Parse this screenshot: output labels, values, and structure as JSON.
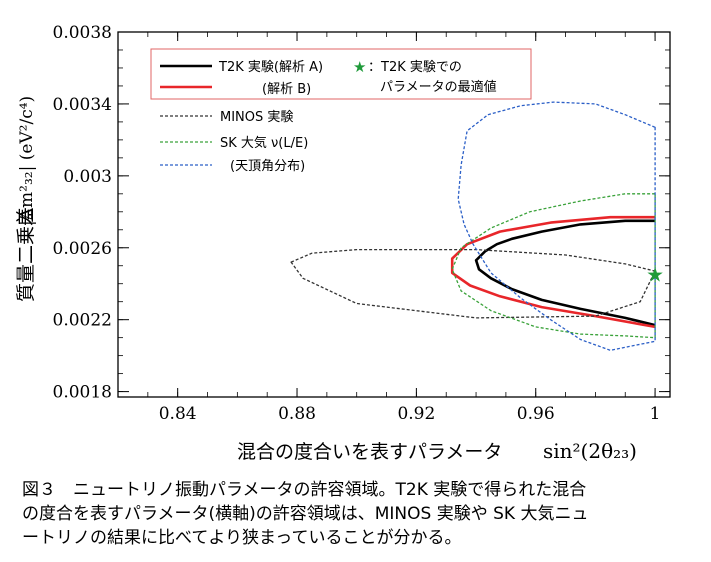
{
  "chart_data": {
    "type": "line",
    "xlabel_text": "混合の度合いを表すパラメータ",
    "xlabel_math": "sin²(2θ₂₃)",
    "ylabel_text": "質量二乗差",
    "ylabel_math": "|Δm²₃₂| (eV²/c⁴)",
    "xlim": [
      0.82,
      1.005
    ],
    "ylim": [
      0.00177,
      0.0038
    ],
    "x_ticks": [
      0.84,
      0.88,
      0.92,
      0.96,
      1.0
    ],
    "x_tick_labels": [
      "0.84",
      "0.88",
      "0.92",
      "0.96",
      "1"
    ],
    "y_ticks": [
      0.0018,
      0.0022,
      0.0026,
      0.003,
      0.0034,
      0.0038
    ],
    "y_tick_labels": [
      "0.0018",
      "0.0022",
      "0.0026",
      "0.003",
      "0.0034",
      "0.0038"
    ],
    "legend_position": "top-left",
    "legend": [
      {
        "label": "T2K 実験(解析 A)",
        "style": "solid",
        "color": "#000000"
      },
      {
        "label": "(解析 B)",
        "style": "solid",
        "color": "#e8262a"
      },
      {
        "label": "MINOS 実験",
        "style": "dotted",
        "color": "#333333"
      },
      {
        "label": "SK 大気 ν(L/E)",
        "style": "dotted",
        "color": "#3aa23a"
      },
      {
        "label": "(天頂角分布)",
        "style": "dotted",
        "color": "#2b5fc7"
      }
    ],
    "best_fit_label_line1": "：T2K 実験での",
    "best_fit_label_line2": "パラメータの最適値",
    "best_fit": {
      "x": 1.0,
      "y": 0.00245
    },
    "series": [
      {
        "name": "T2K 実験(解析 A)",
        "color": "#000000",
        "style": "solid",
        "points": [
          [
            1.0,
            0.00275
          ],
          [
            0.99,
            0.00275
          ],
          [
            0.975,
            0.00273
          ],
          [
            0.962,
            0.00269
          ],
          [
            0.952,
            0.00265
          ],
          [
            0.947,
            0.00262
          ],
          [
            0.943,
            0.00258
          ],
          [
            0.94,
            0.00253
          ],
          [
            0.941,
            0.00248
          ],
          [
            0.945,
            0.00243
          ],
          [
            0.952,
            0.00237
          ],
          [
            0.962,
            0.00231
          ],
          [
            0.975,
            0.00226
          ],
          [
            0.99,
            0.00221
          ],
          [
            1.0,
            0.00217
          ]
        ]
      },
      {
        "name": "(解析 B)",
        "color": "#e8262a",
        "style": "solid",
        "points": [
          [
            1.0,
            0.00277
          ],
          [
            0.985,
            0.00277
          ],
          [
            0.965,
            0.00274
          ],
          [
            0.948,
            0.00269
          ],
          [
            0.937,
            0.00262
          ],
          [
            0.932,
            0.00254
          ],
          [
            0.932,
            0.00246
          ],
          [
            0.938,
            0.00239
          ],
          [
            0.948,
            0.00233
          ],
          [
            0.962,
            0.00227
          ],
          [
            0.98,
            0.00222
          ],
          [
            1.0,
            0.00216
          ]
        ]
      },
      {
        "name": "MINOS 実験",
        "color": "#333333",
        "style": "dotted",
        "closed": true,
        "points": [
          [
            0.878,
            0.00252
          ],
          [
            0.885,
            0.00257
          ],
          [
            0.9,
            0.00259
          ],
          [
            0.94,
            0.00259
          ],
          [
            0.97,
            0.00256
          ],
          [
            0.99,
            0.00251
          ],
          [
            1.0,
            0.00247
          ],
          [
            0.995,
            0.0023
          ],
          [
            0.98,
            0.00222
          ],
          [
            0.94,
            0.00221
          ],
          [
            0.9,
            0.00229
          ],
          [
            0.882,
            0.00243
          ]
        ]
      },
      {
        "name": "SK 大気 ν(L/E)",
        "color": "#3aa23a",
        "style": "dotted",
        "closed": true,
        "points": [
          [
            1.0,
            0.0029
          ],
          [
            0.99,
            0.0029
          ],
          [
            0.975,
            0.00286
          ],
          [
            0.958,
            0.0028
          ],
          [
            0.945,
            0.00271
          ],
          [
            0.935,
            0.0026
          ],
          [
            0.932,
            0.00248
          ],
          [
            0.935,
            0.00236
          ],
          [
            0.945,
            0.00225
          ],
          [
            0.96,
            0.00216
          ],
          [
            0.975,
            0.00212
          ],
          [
            0.99,
            0.00211
          ],
          [
            1.0,
            0.0021
          ]
        ]
      },
      {
        "name": "(天頂角分布)",
        "color": "#2b5fc7",
        "style": "dotted",
        "closed": true,
        "points": [
          [
            1.0,
            0.00327
          ],
          [
            0.99,
            0.00334
          ],
          [
            0.98,
            0.0034
          ],
          [
            0.966,
            0.00341
          ],
          [
            0.955,
            0.00339
          ],
          [
            0.944,
            0.00334
          ],
          [
            0.937,
            0.00325
          ],
          [
            0.935,
            0.00306
          ],
          [
            0.934,
            0.00287
          ],
          [
            0.936,
            0.00273
          ],
          [
            0.939,
            0.00262
          ],
          [
            0.945,
            0.00246
          ],
          [
            0.955,
            0.00232
          ],
          [
            0.965,
            0.0022
          ],
          [
            0.975,
            0.00209
          ],
          [
            0.985,
            0.00203
          ],
          [
            1.0,
            0.00208
          ]
        ]
      }
    ]
  },
  "caption": {
    "line1": "図３　ニュートリノ振動パラメータの許容領域。T2K 実験で得られた混合",
    "line2": "の度合を表すパラメータ(横軸)の許容領域は、MINOS 実験や SK 大気ニュ",
    "line3": "ートリノの結果に比べてより狭まっていることが分かる。"
  }
}
